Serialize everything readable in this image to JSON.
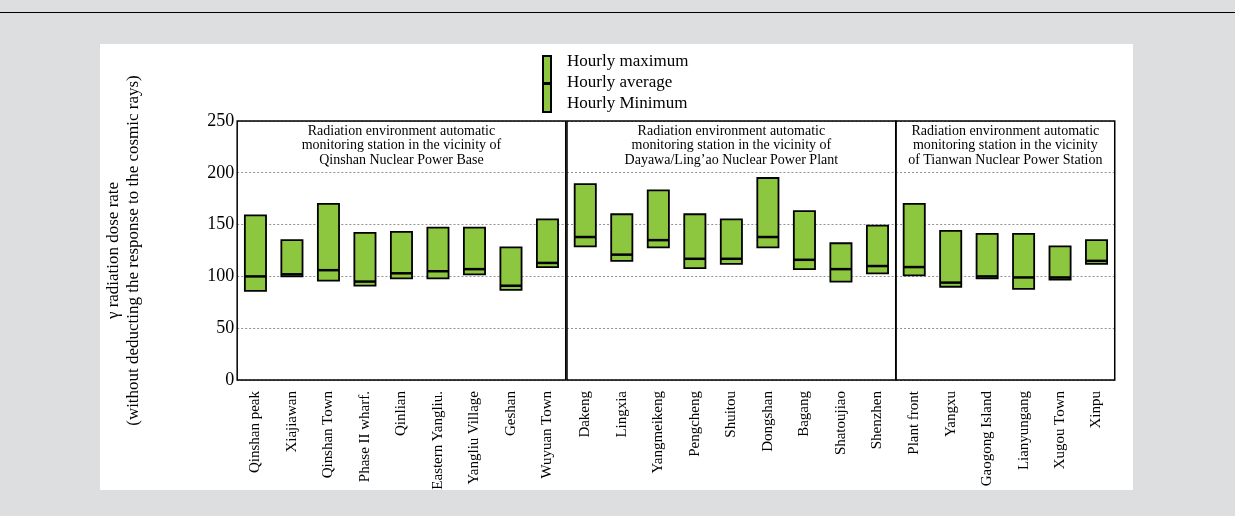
{
  "chart_data": [
    {
      "type": "box",
      "title": "Radiation environment automatic monitoring station in the vicinity of Qinshan Nuclear Power Base",
      "ylabel": "γ radiation dose rate\n(without deducting the response to the cosmic rays)",
      "color": "#8dc63f",
      "categories": [
        "Qinshan peak",
        "Xiajiawan",
        "Qinshan Town",
        "Phase II wharf.",
        "Qinlian",
        "Eastern Yangliu.",
        "Yangliu Village",
        "Geshan",
        "Wuyuan Town"
      ],
      "boxes": [
        {
          "low": 86,
          "q1": 86,
          "median": 100,
          "q3": 159,
          "high": 159
        },
        {
          "low": 100,
          "q1": 100,
          "median": 102,
          "q3": 135,
          "high": 135
        },
        {
          "low": 96,
          "q1": 96,
          "median": 106,
          "q3": 170,
          "high": 170
        },
        {
          "low": 91,
          "q1": 91,
          "median": 95,
          "q3": 142,
          "high": 142
        },
        {
          "low": 98,
          "q1": 98,
          "median": 103,
          "q3": 143,
          "high": 143
        },
        {
          "low": 98,
          "q1": 98,
          "median": 105,
          "q3": 147,
          "high": 147
        },
        {
          "low": 102,
          "q1": 102,
          "median": 107,
          "q3": 147,
          "high": 147
        },
        {
          "low": 87,
          "q1": 87,
          "median": 91,
          "q3": 128,
          "high": 128
        },
        {
          "low": 109,
          "q1": 109,
          "median": 113,
          "q3": 155,
          "high": 155
        }
      ],
      "ylim": [
        0,
        250
      ],
      "yticks": [
        0,
        50,
        100,
        150,
        200,
        250
      ],
      "grid": "y"
    },
    {
      "type": "box",
      "title": "Radiation environment automatic monitoring station in the vicinity of Dayawa/Ling’ao Nuclear Power Plant",
      "color": "#8dc63f",
      "annotations": [
        "Hourly maximum",
        "Hourly average",
        "Hourly Minimum"
      ],
      "categories": [
        "Dakeng",
        "Lingxia",
        "Yangmeikeng",
        "Pengcheng",
        "Shuitou",
        "Dongshan",
        "Bagang",
        "Shatoujiao",
        "Shenzhen"
      ],
      "boxes": [
        {
          "low": 129,
          "q1": 129,
          "median": 138,
          "q3": 189,
          "high": 189
        },
        {
          "low": 115,
          "q1": 115,
          "median": 121,
          "q3": 160,
          "high": 160
        },
        {
          "low": 128,
          "q1": 128,
          "median": 135,
          "q3": 183,
          "high": 183
        },
        {
          "low": 108,
          "q1": 108,
          "median": 117,
          "q3": 160,
          "high": 160
        },
        {
          "low": 112,
          "q1": 112,
          "median": 117,
          "q3": 155,
          "high": 155
        },
        {
          "low": 128,
          "q1": 128,
          "median": 138,
          "q3": 195,
          "high": 195
        },
        {
          "low": 107,
          "q1": 107,
          "median": 116,
          "q3": 163,
          "high": 163
        },
        {
          "low": 95,
          "q1": 95,
          "median": 107,
          "q3": 132,
          "high": 132
        },
        {
          "low": 103,
          "q1": 103,
          "median": 110,
          "q3": 149,
          "high": 149
        }
      ],
      "ylim": [
        0,
        250
      ],
      "yticks": [
        0,
        50,
        100,
        150,
        200,
        250
      ],
      "grid": "y",
      "tick_labels": "x"
    },
    {
      "type": "box",
      "title": "Radiation environment automatic monitoring station in the vicinity of Tianwan Nuclear Power Station",
      "color": "#8dc63f",
      "categories": [
        "Plant front",
        "Yangxu",
        "Gaogong Island",
        "Lianyungang",
        "Xugou Town",
        "Xinpu"
      ],
      "boxes": [
        {
          "low": 101,
          "q1": 101,
          "median": 109,
          "q3": 170,
          "high": 170
        },
        {
          "low": 90,
          "q1": 90,
          "median": 94,
          "q3": 144,
          "high": 144
        },
        {
          "low": 98,
          "q1": 98,
          "median": 100,
          "q3": 141,
          "high": 141
        },
        {
          "low": 88,
          "q1": 88,
          "median": 99,
          "q3": 141,
          "high": 141
        },
        {
          "low": 97,
          "q1": 97,
          "median": 99,
          "q3": 129,
          "high": 129
        },
        {
          "low": 112,
          "q1": 112,
          "median": 115,
          "q3": 135,
          "high": 135
        }
      ],
      "ylim": [
        0,
        250
      ],
      "yticks": [
        0,
        50,
        100,
        150,
        200,
        250
      ],
      "grid": "y",
      "tick_labels": "x"
    }
  ]
}
